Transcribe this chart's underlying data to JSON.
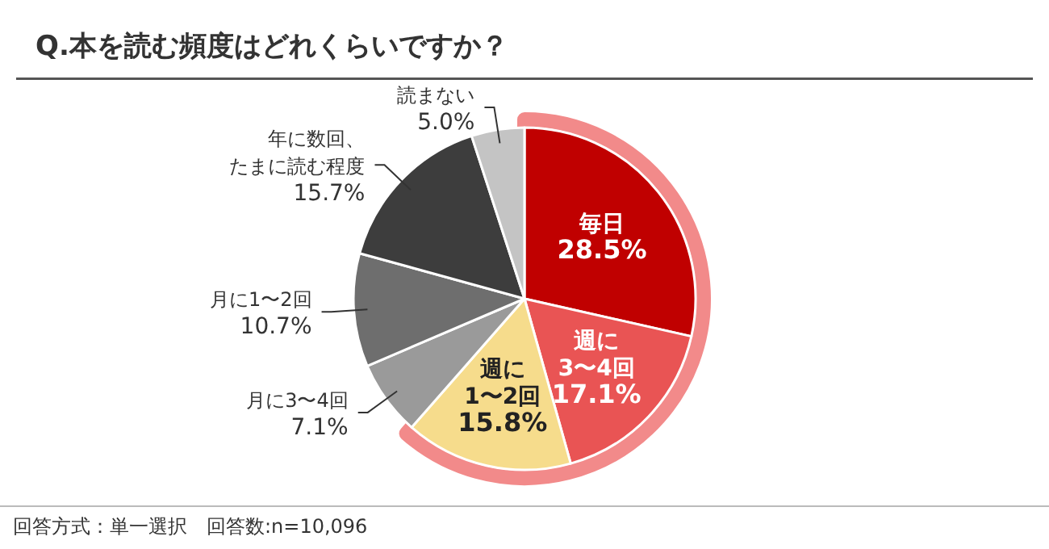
{
  "chart_data": {
    "type": "pie",
    "title": "Q.本を読む頻度はどれくらいですか？",
    "categories": [
      "毎日",
      "週に3〜4回",
      "週に1〜2回",
      "月に3〜4回",
      "月に1〜2回",
      "年に数回、たまに読む程度",
      "読まない"
    ],
    "values": [
      28.5,
      17.1,
      15.8,
      7.1,
      10.7,
      15.7,
      5.0
    ],
    "value_labels": [
      "28.5%",
      "17.1%",
      "15.8%",
      "7.1%",
      "10.7%",
      "15.7%",
      "5.0%"
    ],
    "colors": [
      "#c00000",
      "#e95454",
      "#f6dc8c",
      "#9a9a9a",
      "#6e6e6e",
      "#3d3d3d",
      "#c4c4c4"
    ],
    "annotations": [
      "回答方式：単一選択　回答数:n=10,096"
    ]
  }
}
